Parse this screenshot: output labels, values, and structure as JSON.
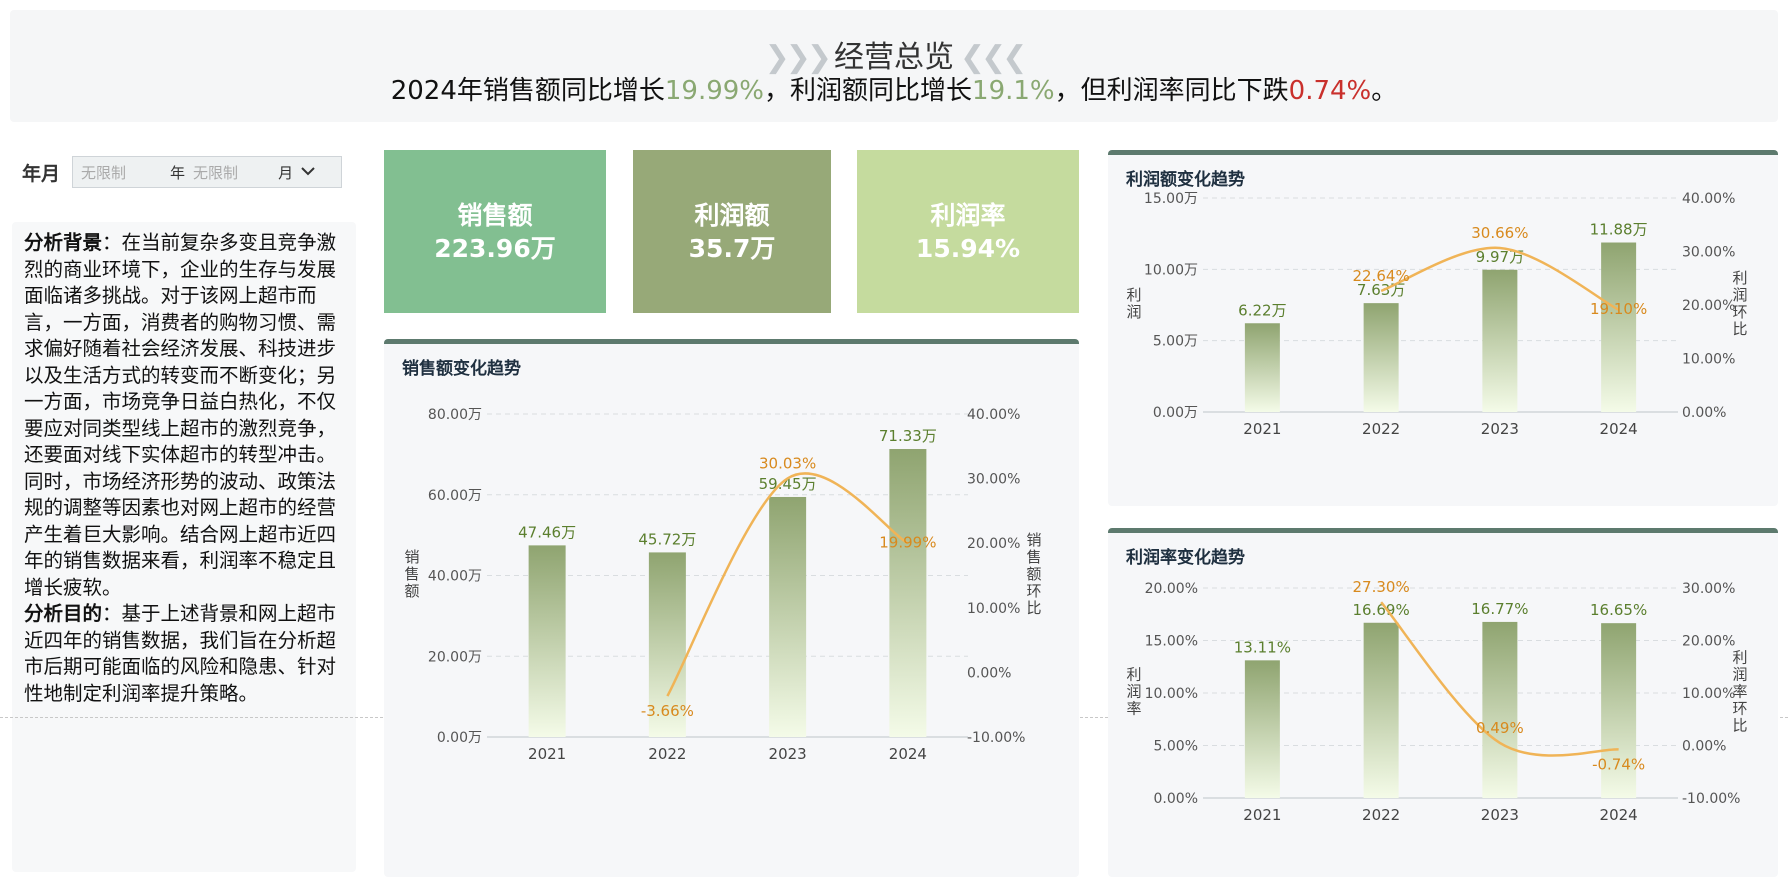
{
  "header": {
    "title": "经营总览",
    "summary_prefix": "2024年销售额同比增长",
    "sales_growth": "19.99%",
    "summary_mid1": "，利润额同比增长",
    "profit_growth": "19.1%",
    "summary_mid2": "，但利润率同比下跌",
    "margin_drop": "0.74%",
    "summary_end": "。"
  },
  "filter": {
    "label": "年月",
    "year_placeholder": "无限制",
    "year_unit": "年",
    "month_placeholder": "无限制",
    "month_unit": "月"
  },
  "analysis": {
    "bg_title": "分析背景",
    "bg_sep": "：",
    "bg_text": "在当前复杂多变且竞争激烈的商业环境下，企业的生存与发展面临诸多挑战。对于该网上超市而言，一方面，消费者的购物习惯、需求偏好随着社会经济发展、科技进步以及生活方式的转变而不断变化；另一方面，市场竞争日益白热化，不仅要应对同类型线上超市的激烈竞争，还要面对线下实体超市的转型冲击。同时，市场经济形势的波动、政策法规的调整等因素也对网上超市的经营产生着巨大影响。结合网上超市近四年的销售数据来看，利润率不稳定且增长疲软。",
    "goal_title": "分析目的",
    "goal_sep": "：",
    "goal_text": "基于上述背景和网上超市近四年的销售数据，我们旨在分析超市后期可能面临的风险和隐患、针对性地制定利润率提升策略。"
  },
  "kpis": [
    {
      "label": "销售额",
      "value": "223.96万",
      "color": "#82bf91"
    },
    {
      "label": "利润额",
      "value": "35.7万",
      "color": "#97a978"
    },
    {
      "label": "利润率",
      "value": "15.94%",
      "color": "#c5db9e"
    }
  ],
  "colors": {
    "bar_top": "#8fa470",
    "bar_bottom": "#f4fbe8",
    "line": "#f0b457",
    "bar_label": "#5b7f2e",
    "line_label": "#d88a1e"
  },
  "chart_data": [
    {
      "type": "bar",
      "title": "销售额变化趋势",
      "categories": [
        "2021",
        "2022",
        "2023",
        "2024"
      ],
      "ylabel": "销售额",
      "y2label": "销售额环比",
      "ylim": [
        0,
        80
      ],
      "y2lim": [
        -10,
        40
      ],
      "yticks": [
        "0.00万",
        "20.00万",
        "40.00万",
        "60.00万",
        "80.00万"
      ],
      "y2ticks": [
        "-10.00%",
        "0.00%",
        "10.00%",
        "20.00%",
        "30.00%",
        "40.00%"
      ],
      "series": [
        {
          "name": "销售额",
          "values": [
            47.46,
            45.72,
            59.45,
            71.33
          ],
          "labels": [
            "47.46万",
            "45.72万",
            "59.45万",
            "71.33万"
          ]
        }
      ],
      "line": {
        "name": "销售额环比",
        "categories": [
          "2022",
          "2023",
          "2024"
        ],
        "values": [
          -3.66,
          30.03,
          19.99
        ],
        "labels": [
          "-3.66%",
          "30.03%",
          "19.99%"
        ]
      },
      "grid": true
    },
    {
      "type": "bar",
      "title": "利润额变化趋势",
      "categories": [
        "2021",
        "2022",
        "2023",
        "2024"
      ],
      "ylabel": "利润",
      "y2label": "利润环比",
      "ylim": [
        0,
        15
      ],
      "y2lim": [
        0,
        40
      ],
      "yticks": [
        "0.00万",
        "5.00万",
        "10.00万",
        "15.00万"
      ],
      "y2ticks": [
        "0.00%",
        "10.00%",
        "20.00%",
        "30.00%",
        "40.00%"
      ],
      "series": [
        {
          "name": "利润额",
          "values": [
            6.22,
            7.63,
            9.97,
            11.88
          ],
          "labels": [
            "6.22万",
            "7.63万",
            "9.97万",
            "11.88万"
          ]
        }
      ],
      "line": {
        "name": "利润环比",
        "categories": [
          "2022",
          "2023",
          "2024"
        ],
        "values": [
          22.64,
          30.66,
          19.1
        ],
        "labels": [
          "22.64%",
          "30.66%",
          "19.10%"
        ]
      },
      "grid": true
    },
    {
      "type": "bar",
      "title": "利润率变化趋势",
      "categories": [
        "2021",
        "2022",
        "2023",
        "2024"
      ],
      "ylabel": "利润率",
      "y2label": "利润率环比",
      "ylim": [
        0,
        20
      ],
      "y2lim": [
        -10,
        30
      ],
      "yticks": [
        "0.00%",
        "5.00%",
        "10.00%",
        "15.00%",
        "20.00%"
      ],
      "y2ticks": [
        "-10.00%",
        "0.00%",
        "10.00%",
        "20.00%",
        "30.00%"
      ],
      "series": [
        {
          "name": "利润率",
          "values": [
            13.11,
            16.69,
            16.77,
            16.65
          ],
          "labels": [
            "13.11%",
            "16.69%",
            "16.77%",
            "16.65%"
          ]
        }
      ],
      "line": {
        "name": "利润率环比",
        "categories": [
          "2022",
          "2023",
          "2024"
        ],
        "values": [
          27.3,
          0.49,
          -0.74
        ],
        "labels": [
          "27.30%",
          "0.49%",
          "-0.74%"
        ]
      },
      "grid": true
    }
  ]
}
